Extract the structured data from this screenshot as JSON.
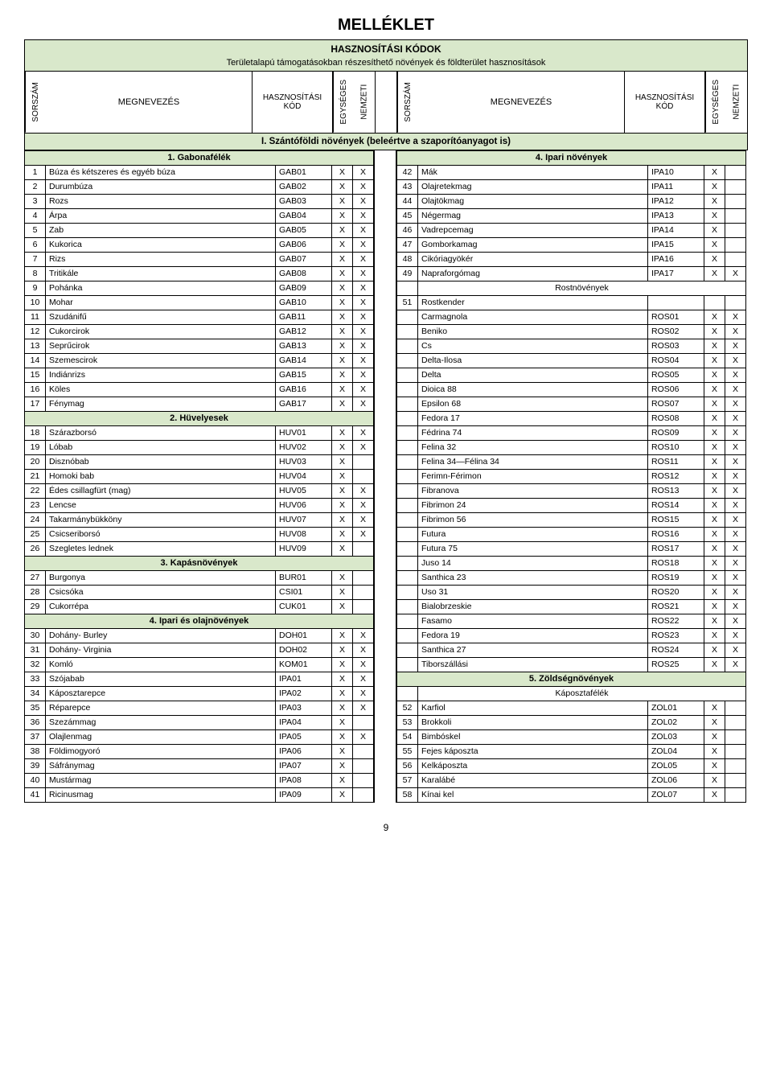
{
  "title": "MELLÉKLET",
  "banner_title": "HASZNOSÍTÁSI KÓDOK",
  "banner_sub": "Területalapú támogatásokban részesíthető növények és földterület hasznosítások",
  "headers": {
    "sorszam": "SORSZÁM",
    "megnevezes": "MEGNEVEZÉS",
    "kod": "HASZNOSÍTÁSI KÓD",
    "egyseges": "EGYSÉGES",
    "nemzeti": "NEMZETI"
  },
  "section_band": "I. Szántóföldi növények (beleértve a szaporítóanyagot is)",
  "colors": {
    "band": "#d9e8cb",
    "border": "#000000",
    "text": "#000000",
    "background": "#ffffff"
  },
  "left": [
    {
      "type": "group",
      "label": "1. Gabonafélék"
    },
    {
      "sor": "1",
      "name": "Búza és kétszeres és egyéb búza",
      "kod": "GAB01",
      "e": "X",
      "n": "X"
    },
    {
      "sor": "2",
      "name": "Durumbúza",
      "kod": "GAB02",
      "e": "X",
      "n": "X"
    },
    {
      "sor": "3",
      "name": "Rozs",
      "kod": "GAB03",
      "e": "X",
      "n": "X"
    },
    {
      "sor": "4",
      "name": "Árpa",
      "kod": "GAB04",
      "e": "X",
      "n": "X"
    },
    {
      "sor": "5",
      "name": "Zab",
      "kod": "GAB05",
      "e": "X",
      "n": "X"
    },
    {
      "sor": "6",
      "name": "Kukorica",
      "kod": "GAB06",
      "e": "X",
      "n": "X"
    },
    {
      "sor": "7",
      "name": "Rizs",
      "kod": "GAB07",
      "e": "X",
      "n": "X"
    },
    {
      "sor": "8",
      "name": "Tritikále",
      "kod": "GAB08",
      "e": "X",
      "n": "X"
    },
    {
      "sor": "9",
      "name": "Pohánka",
      "kod": "GAB09",
      "e": "X",
      "n": "X"
    },
    {
      "sor": "10",
      "name": "Mohar",
      "kod": "GAB10",
      "e": "X",
      "n": "X"
    },
    {
      "sor": "11",
      "name": "Szudánifű",
      "kod": "GAB11",
      "e": "X",
      "n": "X"
    },
    {
      "sor": "12",
      "name": "Cukorcirok",
      "kod": "GAB12",
      "e": "X",
      "n": "X"
    },
    {
      "sor": "13",
      "name": "Seprűcirok",
      "kod": "GAB13",
      "e": "X",
      "n": "X"
    },
    {
      "sor": "14",
      "name": "Szemescirok",
      "kod": "GAB14",
      "e": "X",
      "n": "X"
    },
    {
      "sor": "15",
      "name": "Indiánrizs",
      "kod": "GAB15",
      "e": "X",
      "n": "X"
    },
    {
      "sor": "16",
      "name": "Köles",
      "kod": "GAB16",
      "e": "X",
      "n": "X"
    },
    {
      "sor": "17",
      "name": "Fénymag",
      "kod": "GAB17",
      "e": "X",
      "n": "X"
    },
    {
      "type": "group",
      "label": "2. Hüvelyesek"
    },
    {
      "sor": "18",
      "name": "Szárazborsó",
      "kod": "HUV01",
      "e": "X",
      "n": "X"
    },
    {
      "sor": "19",
      "name": "Lóbab",
      "kod": "HUV02",
      "e": "X",
      "n": "X"
    },
    {
      "sor": "20",
      "name": "Disznóbab",
      "kod": "HUV03",
      "e": "X",
      "n": ""
    },
    {
      "sor": "21",
      "name": "Homoki bab",
      "kod": "HUV04",
      "e": "X",
      "n": ""
    },
    {
      "sor": "22",
      "name": "Édes csillagfürt (mag)",
      "kod": "HUV05",
      "e": "X",
      "n": "X"
    },
    {
      "sor": "23",
      "name": "Lencse",
      "kod": "HUV06",
      "e": "X",
      "n": "X"
    },
    {
      "sor": "24",
      "name": "Takarmánybükköny",
      "kod": "HUV07",
      "e": "X",
      "n": "X"
    },
    {
      "sor": "25",
      "name": "Csicseriborsó",
      "kod": "HUV08",
      "e": "X",
      "n": "X"
    },
    {
      "sor": "26",
      "name": "Szegletes lednek",
      "kod": "HUV09",
      "e": "X",
      "n": ""
    },
    {
      "type": "group",
      "label": "3. Kapásnövények"
    },
    {
      "sor": "27",
      "name": "Burgonya",
      "kod": "BUR01",
      "e": "X",
      "n": ""
    },
    {
      "sor": "28",
      "name": "Csicsóka",
      "kod": "CSI01",
      "e": "X",
      "n": ""
    },
    {
      "sor": "29",
      "name": "Cukorrépa",
      "kod": "CUK01",
      "e": "X",
      "n": ""
    },
    {
      "type": "group",
      "label": "4. Ipari és olajnövények"
    },
    {
      "sor": "30",
      "name": "Dohány- Burley",
      "kod": "DOH01",
      "e": "X",
      "n": "X"
    },
    {
      "sor": "31",
      "name": "Dohány- Virginia",
      "kod": "DOH02",
      "e": "X",
      "n": "X"
    },
    {
      "sor": "32",
      "name": "Komló",
      "kod": "KOM01",
      "e": "X",
      "n": "X"
    },
    {
      "sor": "33",
      "name": "Szójabab",
      "kod": "IPA01",
      "e": "X",
      "n": "X"
    },
    {
      "sor": "34",
      "name": "Káposztarepce",
      "kod": "IPA02",
      "e": "X",
      "n": "X"
    },
    {
      "sor": "35",
      "name": "Réparepce",
      "kod": "IPA03",
      "e": "X",
      "n": "X"
    },
    {
      "sor": "36",
      "name": "Szezámmag",
      "kod": "IPA04",
      "e": "X",
      "n": ""
    },
    {
      "sor": "37",
      "name": "Olajlenmag",
      "kod": "IPA05",
      "e": "X",
      "n": "X"
    },
    {
      "sor": "38",
      "name": "Földimogyoró",
      "kod": "IPA06",
      "e": "X",
      "n": ""
    },
    {
      "sor": "39",
      "name": "Sáfránymag",
      "kod": "IPA07",
      "e": "X",
      "n": ""
    },
    {
      "sor": "40",
      "name": "Mustármag",
      "kod": "IPA08",
      "e": "X",
      "n": ""
    },
    {
      "sor": "41",
      "name": "Ricinusmag",
      "kod": "IPA09",
      "e": "X",
      "n": ""
    }
  ],
  "right": [
    {
      "type": "group",
      "label": "4. Ipari növények"
    },
    {
      "sor": "42",
      "name": "Mák",
      "kod": "IPA10",
      "e": "X",
      "n": ""
    },
    {
      "sor": "43",
      "name": "Olajretekmag",
      "kod": "IPA11",
      "e": "X",
      "n": ""
    },
    {
      "sor": "44",
      "name": "Olajtökmag",
      "kod": "IPA12",
      "e": "X",
      "n": ""
    },
    {
      "sor": "45",
      "name": "Négermag",
      "kod": "IPA13",
      "e": "X",
      "n": ""
    },
    {
      "sor": "46",
      "name": "Vadrepcemag",
      "kod": "IPA14",
      "e": "X",
      "n": ""
    },
    {
      "sor": "47",
      "name": "Gomborkamag",
      "kod": "IPA15",
      "e": "X",
      "n": ""
    },
    {
      "sor": "48",
      "name": "Cikóriagyökér",
      "kod": "IPA16",
      "e": "X",
      "n": ""
    },
    {
      "sor": "49",
      "name": "Napraforgómag",
      "kod": "IPA17",
      "e": "X",
      "n": "X"
    },
    {
      "type": "subgroup",
      "label": "Rostnövények"
    },
    {
      "sor": "51",
      "name": "Rostkender",
      "kod": "",
      "e": "",
      "n": ""
    },
    {
      "sor": "",
      "name": "Carmagnola",
      "kod": "ROS01",
      "e": "X",
      "n": "X"
    },
    {
      "sor": "",
      "name": "Beniko",
      "kod": "ROS02",
      "e": "X",
      "n": "X"
    },
    {
      "sor": "",
      "name": "Cs",
      "kod": "ROS03",
      "e": "X",
      "n": "X"
    },
    {
      "sor": "",
      "name": "Delta-Ilosa",
      "kod": "ROS04",
      "e": "X",
      "n": "X"
    },
    {
      "sor": "",
      "name": "Delta",
      "kod": "ROS05",
      "e": "X",
      "n": "X"
    },
    {
      "sor": "",
      "name": "Dioica 88",
      "kod": "ROS06",
      "e": "X",
      "n": "X"
    },
    {
      "sor": "",
      "name": "Epsilon 68",
      "kod": "ROS07",
      "e": "X",
      "n": "X"
    },
    {
      "sor": "",
      "name": "Fedora 17",
      "kod": "ROS08",
      "e": "X",
      "n": "X"
    },
    {
      "sor": "",
      "name": "Fédrina 74",
      "kod": "ROS09",
      "e": "X",
      "n": "X"
    },
    {
      "sor": "",
      "name": "Felina 32",
      "kod": "ROS10",
      "e": "X",
      "n": "X"
    },
    {
      "sor": "",
      "name": "Felina 34—Félina 34",
      "kod": "ROS11",
      "e": "X",
      "n": "X"
    },
    {
      "sor": "",
      "name": "Ferimn-Férimon",
      "kod": "ROS12",
      "e": "X",
      "n": "X"
    },
    {
      "sor": "",
      "name": "Fibranova",
      "kod": "ROS13",
      "e": "X",
      "n": "X"
    },
    {
      "sor": "",
      "name": "Fibrimon 24",
      "kod": "ROS14",
      "e": "X",
      "n": "X"
    },
    {
      "sor": "",
      "name": "Fibrimon 56",
      "kod": "ROS15",
      "e": "X",
      "n": "X"
    },
    {
      "sor": "",
      "name": "Futura",
      "kod": "ROS16",
      "e": "X",
      "n": "X"
    },
    {
      "sor": "",
      "name": "Futura 75",
      "kod": "ROS17",
      "e": "X",
      "n": "X"
    },
    {
      "sor": "",
      "name": "Juso 14",
      "kod": "ROS18",
      "e": "X",
      "n": "X"
    },
    {
      "sor": "",
      "name": "Santhica 23",
      "kod": "ROS19",
      "e": "X",
      "n": "X"
    },
    {
      "sor": "",
      "name": "Uso 31",
      "kod": "ROS20",
      "e": "X",
      "n": "X"
    },
    {
      "sor": "",
      "name": "Bialobrzeskie",
      "kod": "ROS21",
      "e": "X",
      "n": "X"
    },
    {
      "sor": "",
      "name": "Fasamo",
      "kod": "ROS22",
      "e": "X",
      "n": "X"
    },
    {
      "sor": "",
      "name": "Fedora 19",
      "kod": "ROS23",
      "e": "X",
      "n": "X"
    },
    {
      "sor": "",
      "name": "Santhica 27",
      "kod": "ROS24",
      "e": "X",
      "n": "X"
    },
    {
      "sor": "",
      "name": "Tiborszállási",
      "kod": "ROS25",
      "e": "X",
      "n": "X"
    },
    {
      "type": "group",
      "label": "5. Zöldségnövények"
    },
    {
      "type": "subgroup",
      "label": "Káposztafélék"
    },
    {
      "sor": "52",
      "name": "Karfiol",
      "kod": "ZOL01",
      "e": "X",
      "n": ""
    },
    {
      "sor": "53",
      "name": "Brokkoli",
      "kod": "ZOL02",
      "e": "X",
      "n": ""
    },
    {
      "sor": "54",
      "name": "Bimbóskel",
      "kod": "ZOL03",
      "e": "X",
      "n": ""
    },
    {
      "sor": "55",
      "name": "Fejes káposzta",
      "kod": "ZOL04",
      "e": "X",
      "n": ""
    },
    {
      "sor": "56",
      "name": "Kelkáposzta",
      "kod": "ZOL05",
      "e": "X",
      "n": ""
    },
    {
      "sor": "57",
      "name": "Karalábé",
      "kod": "ZOL06",
      "e": "X",
      "n": ""
    },
    {
      "sor": "58",
      "name": "Kínai kel",
      "kod": "ZOL07",
      "e": "X",
      "n": ""
    }
  ],
  "page_number": "9"
}
